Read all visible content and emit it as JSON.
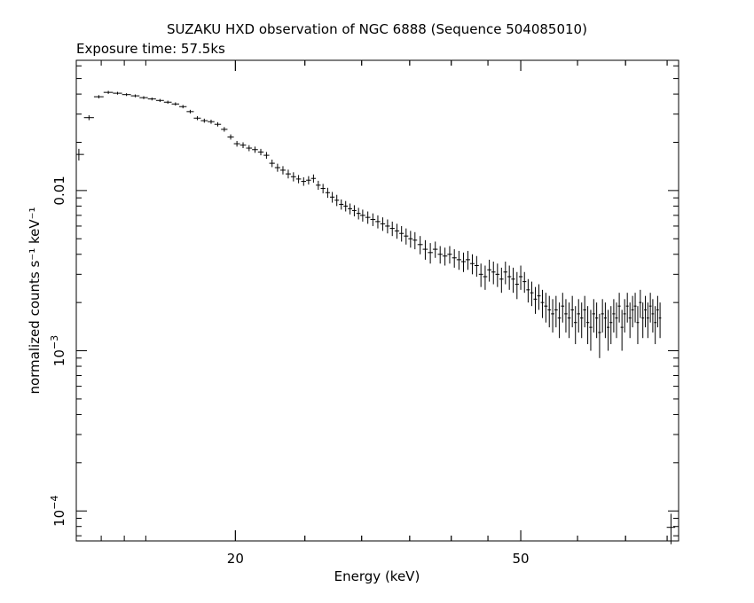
{
  "chart_data": {
    "type": "scatter",
    "title": "SUZAKU HXD observation of NGC 6888 (Sequence 504085010)",
    "subtitle": "Exposure time: 57.5ks",
    "xlabel": "Energy (keV)",
    "ylabel": "normalized counts s⁻¹ keV⁻¹",
    "x_scale": "log",
    "y_scale": "log",
    "xlim": [
      12.0,
      83.0
    ],
    "ylim": [
      6.5e-05,
      0.065
    ],
    "grid": false,
    "x_tick_labels": [
      {
        "value": 20,
        "label": "20"
      },
      {
        "value": 50,
        "label": "50"
      }
    ],
    "y_tick_labels": [
      {
        "value": 0.01,
        "label": "0.01",
        "exp": ""
      },
      {
        "value": 0.001,
        "label": "10",
        "exp": "−3"
      },
      {
        "value": 0.0001,
        "label": "10",
        "exp": "−4"
      }
    ],
    "series": [
      {
        "x": [
          12.1,
          12.5,
          12.9,
          13.3,
          13.7,
          14.1,
          14.5,
          14.9,
          15.3,
          15.7,
          16.1,
          16.5,
          16.9,
          17.3,
          17.7,
          18.1,
          18.5,
          18.9,
          19.3,
          19.7,
          20.1,
          20.5,
          20.9,
          21.3,
          21.7,
          22.1,
          22.5,
          22.9,
          23.3,
          23.7,
          24.1,
          24.5,
          24.9,
          25.3,
          25.7,
          26.1,
          26.5,
          26.9,
          27.3,
          27.7,
          28.1,
          28.5,
          28.9,
          29.3,
          29.7,
          30.1,
          30.6,
          31.1,
          31.6,
          32.1,
          32.6,
          33.1,
          33.6,
          34.1,
          34.6,
          35.1,
          35.6,
          36.2,
          36.8,
          37.4,
          38.0,
          38.6,
          39.2,
          39.8,
          40.4,
          41.0,
          41.6,
          42.2,
          42.8,
          43.4,
          44.0,
          44.6,
          45.2,
          45.8,
          46.4,
          47.0,
          47.6,
          48.2,
          48.8,
          49.4,
          50.0,
          50.6,
          51.2,
          51.8,
          52.4,
          53.0,
          53.6,
          54.2,
          54.8,
          55.4,
          56.0,
          56.6,
          57.2,
          57.8,
          58.4,
          59.0,
          59.6,
          60.2,
          60.8,
          61.4,
          62.0,
          62.6,
          63.2,
          63.8,
          64.4,
          65.0,
          65.6,
          66.2,
          66.8,
          67.4,
          68.0,
          68.6,
          69.2,
          69.8,
          70.4,
          71.0,
          71.6,
          72.2,
          72.8,
          73.4,
          74.0,
          74.6,
          75.2,
          75.8,
          76.4,
          77.0,
          77.6,
          78.2
        ],
        "y": [
          0.0168,
          0.0285,
          0.0385,
          0.041,
          0.0405,
          0.0397,
          0.039,
          0.038,
          0.0373,
          0.0365,
          0.0356,
          0.0347,
          0.0334,
          0.0311,
          0.0283,
          0.0273,
          0.0269,
          0.0259,
          0.0241,
          0.0216,
          0.0196,
          0.0192,
          0.0184,
          0.018,
          0.0174,
          0.0166,
          0.0148,
          0.0139,
          0.0134,
          0.0127,
          0.0122,
          0.0118,
          0.0114,
          0.0116,
          0.0119,
          0.0108,
          0.0103,
          0.0097,
          0.0091,
          0.0087,
          0.0082,
          0.008,
          0.0077,
          0.0075,
          0.0072,
          0.007,
          0.0068,
          0.0066,
          0.0064,
          0.0062,
          0.006,
          0.0058,
          0.0056,
          0.0054,
          0.0052,
          0.005,
          0.0049,
          0.0046,
          0.0043,
          0.0041,
          0.0043,
          0.004,
          0.0039,
          0.004,
          0.0038,
          0.0037,
          0.0036,
          0.0037,
          0.0035,
          0.0034,
          0.003,
          0.0029,
          0.0032,
          0.0031,
          0.003,
          0.0028,
          0.0031,
          0.0029,
          0.0028,
          0.0026,
          0.0029,
          0.0027,
          0.0024,
          0.0023,
          0.0021,
          0.0022,
          0.002,
          0.0019,
          0.0018,
          0.0017,
          0.0018,
          0.0016,
          0.0019,
          0.0017,
          0.0016,
          0.0018,
          0.0015,
          0.0017,
          0.0016,
          0.0018,
          0.0015,
          0.0014,
          0.0017,
          0.0016,
          0.0013,
          0.0017,
          0.0016,
          0.0014,
          0.0015,
          0.0017,
          0.0016,
          0.0019,
          0.0014,
          0.0017,
          0.0019,
          0.0016,
          0.0018,
          0.0019,
          0.0015,
          0.002,
          0.0016,
          0.0018,
          0.0016,
          0.0019,
          0.0017,
          0.0015,
          0.0018,
          0.0016
        ],
        "xerr": [
          0.2,
          0.2,
          0.2,
          0.2,
          0.2,
          0.2,
          0.2,
          0.2,
          0.2,
          0.2,
          0.2,
          0.2,
          0.2,
          0.2,
          0.2,
          0.2,
          0.2,
          0.2,
          0.2,
          0.2,
          0.2,
          0.2,
          0.2,
          0.2,
          0.2,
          0.2,
          0.2,
          0.2,
          0.2,
          0.2,
          0.2,
          0.2,
          0.2,
          0.2,
          0.2,
          0.2,
          0.2,
          0.2,
          0.2,
          0.2,
          0.2,
          0.2,
          0.2,
          0.2,
          0.2,
          0.25,
          0.25,
          0.25,
          0.25,
          0.25,
          0.25,
          0.25,
          0.25,
          0.25,
          0.25,
          0.25,
          0.25,
          0.3,
          0.3,
          0.3,
          0.3,
          0.3,
          0.3,
          0.3,
          0.3,
          0.3,
          0.3,
          0.3,
          0.3,
          0.3,
          0.3,
          0.3,
          0.3,
          0.3,
          0.3,
          0.3,
          0.3,
          0.3,
          0.3,
          0.3,
          0.3,
          0.3,
          0.3,
          0.3,
          0.3,
          0.3,
          0.3,
          0.3,
          0.3,
          0.3,
          0.3,
          0.3,
          0.3,
          0.3,
          0.3,
          0.3,
          0.3,
          0.3,
          0.3,
          0.3,
          0.3,
          0.3,
          0.3,
          0.3,
          0.3,
          0.3,
          0.3,
          0.3,
          0.3,
          0.3,
          0.3,
          0.3,
          0.3,
          0.3,
          0.3,
          0.3,
          0.3,
          0.3,
          0.3,
          0.3,
          0.3,
          0.3,
          0.3,
          0.3,
          0.3,
          0.3,
          0.3,
          0.3
        ],
        "yerr": [
          0.0014,
          0.001,
          0.0009,
          0.0009,
          0.0008,
          0.0008,
          0.0008,
          0.0008,
          0.0008,
          0.0008,
          0.0008,
          0.0008,
          0.0008,
          0.0008,
          0.0008,
          0.0008,
          0.0008,
          0.0008,
          0.0008,
          0.0008,
          0.0008,
          0.0008,
          0.0008,
          0.0008,
          0.0008,
          0.0008,
          0.0008,
          0.0008,
          0.0008,
          0.0008,
          0.0008,
          0.0007,
          0.0007,
          0.0007,
          0.0007,
          0.0007,
          0.0007,
          0.0007,
          0.0007,
          0.0007,
          0.0006,
          0.0006,
          0.0006,
          0.0006,
          0.0006,
          0.0006,
          0.0006,
          0.0006,
          0.0006,
          0.0006,
          0.0006,
          0.0006,
          0.0006,
          0.0006,
          0.0006,
          0.0006,
          0.0006,
          0.0006,
          0.0006,
          0.0006,
          0.0005,
          0.0005,
          0.0005,
          0.0005,
          0.0005,
          0.0005,
          0.0005,
          0.0005,
          0.0005,
          0.0005,
          0.0005,
          0.0005,
          0.0005,
          0.0005,
          0.0005,
          0.0005,
          0.0005,
          0.0005,
          0.0005,
          0.0005,
          0.0005,
          0.0004,
          0.0004,
          0.0004,
          0.0004,
          0.0004,
          0.0004,
          0.0004,
          0.0004,
          0.0004,
          0.0004,
          0.0004,
          0.0004,
          0.0004,
          0.0004,
          0.0004,
          0.0004,
          0.0004,
          0.0004,
          0.0004,
          0.0004,
          0.0004,
          0.0004,
          0.0004,
          0.0004,
          0.0004,
          0.0004,
          0.0004,
          0.0004,
          0.0004,
          0.0004,
          0.0004,
          0.0004,
          0.0004,
          0.0004,
          0.0004,
          0.0004,
          0.0004,
          0.0004,
          0.0004,
          0.0004,
          0.0004,
          0.0004,
          0.0004,
          0.0004,
          0.0004,
          0.0004,
          0.0004
        ]
      }
    ],
    "corner_marker": {
      "x": 81.0,
      "y": 7.9e-05,
      "xerr": 1.1,
      "yerr": 1.7e-05
    }
  }
}
